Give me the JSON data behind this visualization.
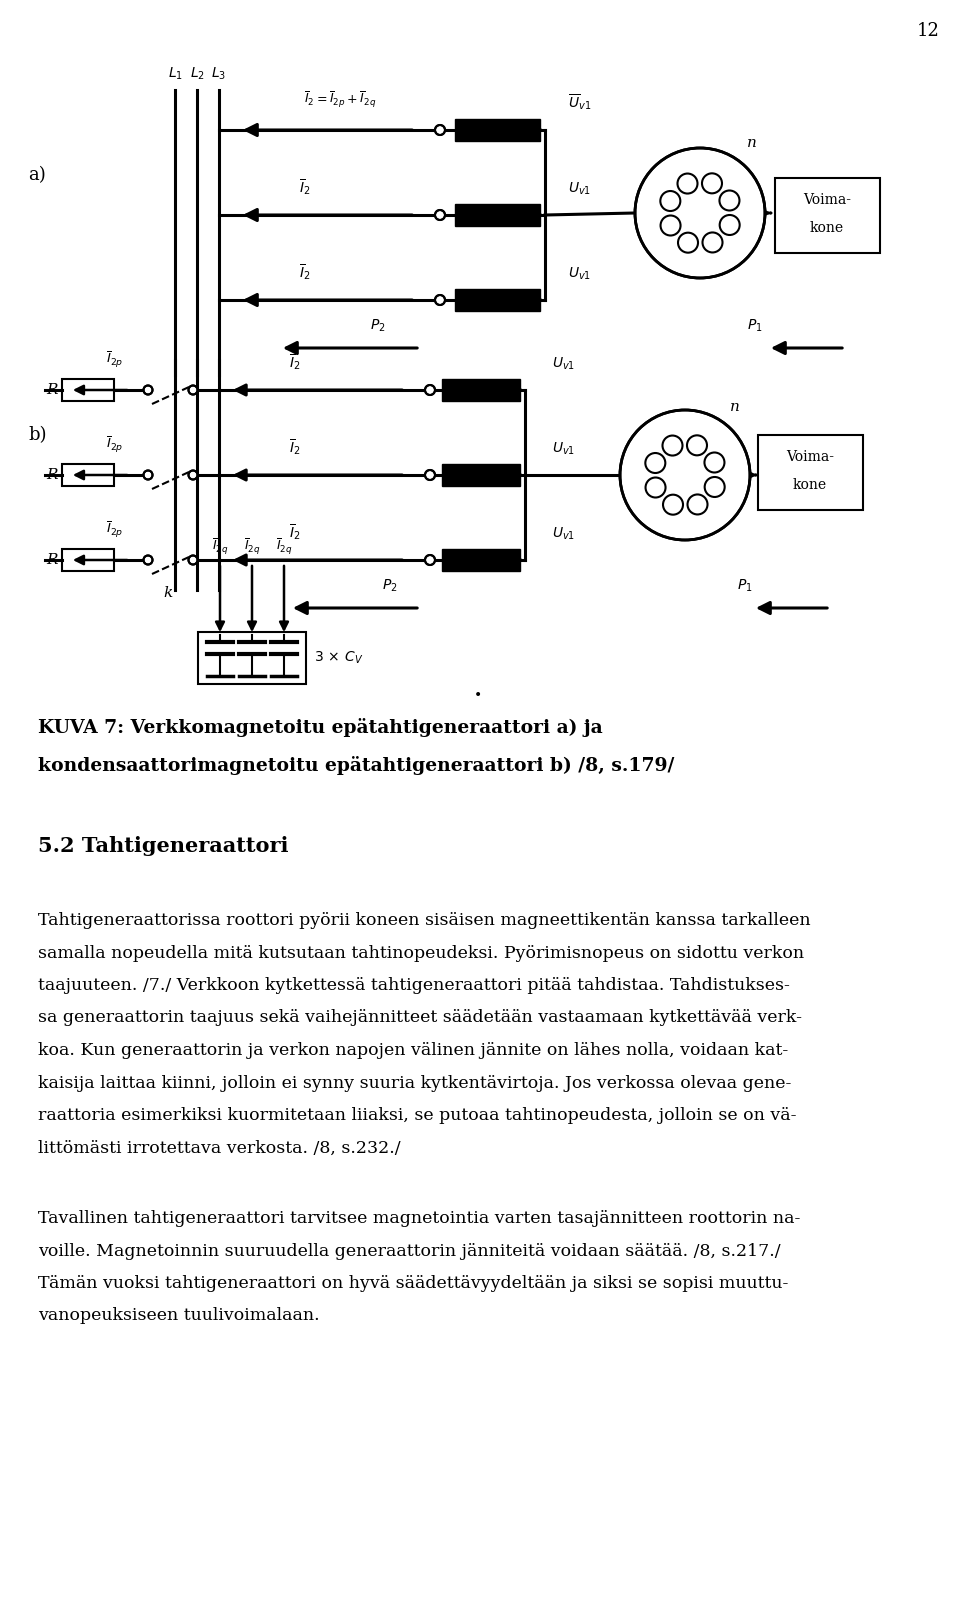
{
  "page_number": "12",
  "background_color": "#ffffff",
  "text_color": "#000000",
  "figsize": [
    9.6,
    16.21
  ],
  "dpi": 100,
  "caption_line1": "KUVA 7: Verkkomagnetoitu epätahtigeneraattori a) ja",
  "caption_line2": "kondensaattorimagnetoitu epätahtigeneraattori b) /8, s.179/",
  "section_heading": "5.2 Tahtigeneraattori",
  "paragraph1_lines": [
    "Tahtigeneraattorissa roottori pyörii koneen sisäisen magneettikentän kanssa tarkalleen",
    "samalla nopeudella mitä kutsutaan tahtinopeudeksi. Pyörimisnopeus on sidottu verkon",
    "taajuuteen. /7./ Verkkoon kytkettessä tahtigeneraattori pitää tahdistaa. Tahdistukses-",
    "sa generaattorin taajuus sekä vaihejännitteet säädetään vastaamaan kytkettävää verk-",
    "koa. Kun generaattorin ja verkon napojen välinen jännite on lähes nolla, voidaan kat-",
    "kaisija laittaa kiinni, jolloin ei synny suuria kytkentävirtoja. Jos verkossa olevaa gene-",
    "raattoria esimerkiksi kuormitetaan liiaksi, se putoaa tahtinopeudesta, jolloin se on vä-",
    "littömästi irrotettava verkosta. /8, s.232./"
  ],
  "paragraph2_lines": [
    "Tavallinen tahtigeneraattori tarvitsee magnetointia varten tasajännitteen roottorin na-",
    "voille. Magnetoinnin suuruudella generaattorin jänniteitä voidaan säätää. /8, s.217./",
    "Tämän vuoksi tahtigeneraattori on hyvä säädettävyydeltään ja siksi se sopisi muuttu-",
    "vanopeuksiseen tuulivoimalaan."
  ]
}
